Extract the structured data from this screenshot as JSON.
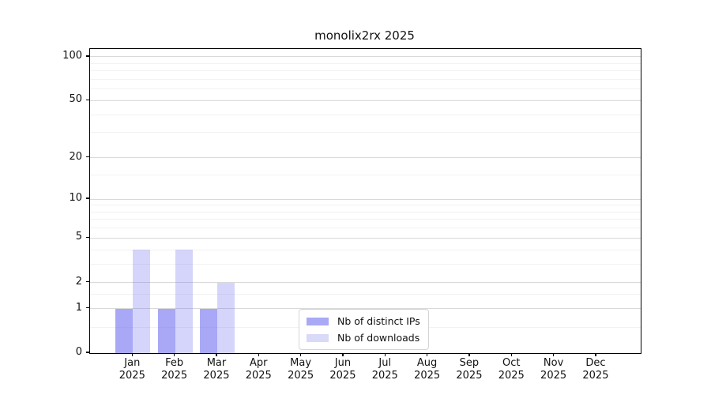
{
  "title": "monolix2rx 2025",
  "chart_data": {
    "type": "bar",
    "title": "monolix2rx 2025",
    "categories": [
      "Jan",
      "Feb",
      "Mar",
      "Apr",
      "May",
      "Jun",
      "Jul",
      "Aug",
      "Sep",
      "Oct",
      "Nov",
      "Dec"
    ],
    "category_year": "2025",
    "series": [
      {
        "name": "Nb of distinct IPs",
        "color": "#a9a9f6",
        "fill": "rgba(99,99,241,0.56)",
        "values": [
          1,
          1,
          1,
          0,
          0,
          0,
          0,
          0,
          0,
          0,
          0,
          0
        ]
      },
      {
        "name": "Nb of downloads",
        "color": "#d9d9f8",
        "fill": "rgba(99,99,241,0.27)",
        "values": [
          4,
          4,
          2,
          0,
          0,
          0,
          0,
          0,
          0,
          0,
          0,
          0
        ]
      }
    ],
    "y_axis": {
      "scale": "log1p",
      "ticks": [
        0,
        1,
        2,
        5,
        10,
        20,
        50,
        100
      ],
      "minor_ticks": [
        0.5,
        1.5,
        3,
        4,
        6,
        7,
        8,
        9,
        15,
        30,
        40,
        60,
        70,
        80,
        90
      ],
      "max": 113
    },
    "x_axis": {
      "label": "",
      "tick_year_line": "2025"
    },
    "ylabel": "",
    "xlabel": "",
    "grid": true,
    "legend_position": "bottom-center"
  },
  "colors": {
    "background": "#ffffff",
    "axis": "#000000",
    "grid_major": "#d9d9d9",
    "grid_minor": "#f2f2f2",
    "text": "#111111",
    "legend_border": "#d4d4d4"
  }
}
